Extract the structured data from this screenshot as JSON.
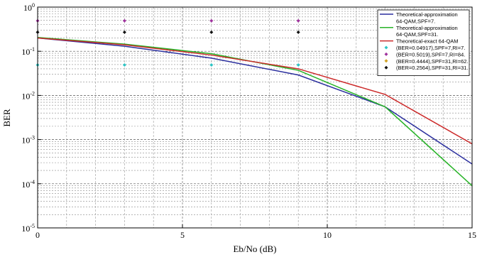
{
  "chart_data": {
    "type": "line",
    "xlabel": "Eb/No  (dB)",
    "ylabel": "BER",
    "xlim": [
      0,
      15
    ],
    "ylim_log10": [
      -5,
      0
    ],
    "y_scale": "log",
    "grid": true,
    "legend_position": "top-right",
    "x_ticks": [
      {
        "value": 0,
        "label": "0"
      },
      {
        "value": 5,
        "label": "5"
      },
      {
        "value": 10,
        "label": "10"
      },
      {
        "value": 15,
        "label": "15"
      }
    ],
    "y_ticks": [
      {
        "exp": 0,
        "label": "10",
        "sup": "0"
      },
      {
        "exp": -1,
        "label": "10",
        "sup": "-1"
      },
      {
        "exp": -2,
        "label": "10",
        "sup": "-2"
      },
      {
        "exp": -3,
        "label": "10",
        "sup": "-3"
      },
      {
        "exp": -4,
        "label": "10",
        "sup": "-4"
      },
      {
        "exp": -5,
        "label": "10",
        "sup": "-5"
      }
    ],
    "series": [
      {
        "legend": [
          "Theoretical-approximation",
          "64-QAM,SPF=7."
        ],
        "color": "#2b2f9e",
        "style": "line",
        "x": [
          0,
          3,
          6,
          9,
          12,
          15
        ],
        "y": [
          0.2,
          0.13,
          0.07,
          0.029,
          0.0055,
          0.00028
        ]
      },
      {
        "legend": [
          "Theoretical-approximation",
          "64-QAM,SPF=31."
        ],
        "color": "#27b327",
        "style": "line",
        "x": [
          0,
          3,
          6,
          9,
          12,
          15
        ],
        "y": [
          0.205,
          0.145,
          0.088,
          0.037,
          0.0055,
          9e-05
        ]
      },
      {
        "legend": [
          "Theoretical-exact 64-QAM"
        ],
        "color": "#cc2a2a",
        "style": "line",
        "x": [
          0,
          3,
          6,
          9,
          12,
          15
        ],
        "y": [
          0.2,
          0.14,
          0.082,
          0.04,
          0.0105,
          0.0008
        ]
      },
      {
        "legend": [
          "(BER=0.04917),SPF=7,RI=7."
        ],
        "color": "#2ec4c4",
        "style": "marker",
        "x": [
          0,
          3,
          6,
          9
        ],
        "y": [
          0.049,
          0.049,
          0.049,
          0.049
        ]
      },
      {
        "legend": [
          "(BER=0.5019),SPF=7,RI=84."
        ],
        "color": "#a0329e",
        "style": "marker",
        "x": [
          0,
          3,
          6,
          9
        ],
        "y": [
          0.49,
          0.49,
          0.49,
          0.49
        ]
      },
      {
        "legend": [
          "(BER=0.4444),SPF=31,RI=62."
        ],
        "color": "#d2a326",
        "style": "marker",
        "x": [],
        "y": []
      },
      {
        "legend": [
          "(BER=0.2564),SPF=31,RI=31."
        ],
        "color": "#111111",
        "style": "marker",
        "x": [
          0,
          3,
          6,
          9
        ],
        "y": [
          0.27,
          0.27,
          0.27,
          0.27
        ]
      }
    ]
  }
}
